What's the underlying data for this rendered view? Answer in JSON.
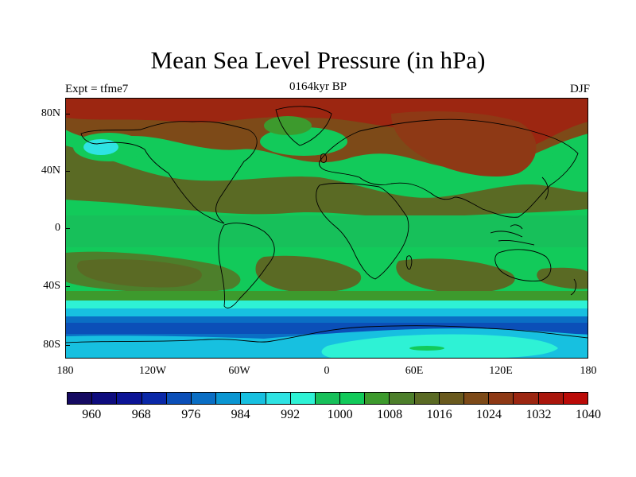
{
  "title": "Mean Sea Level Pressure (in hPa)",
  "subtitle_left": "Expt = tfme7",
  "subtitle_center": "0164kyr BP",
  "subtitle_right": "DJF",
  "y_axis": {
    "ticks": [
      "80N",
      "40N",
      "0",
      "40S",
      "80S"
    ]
  },
  "x_axis": {
    "ticks": [
      "180",
      "120W",
      "60W",
      "0",
      "60E",
      "120E",
      "180"
    ]
  },
  "colorbar": {
    "labels": [
      "960",
      "968",
      "976",
      "984",
      "992",
      "1000",
      "1008",
      "1016",
      "1024",
      "1032",
      "1040"
    ],
    "colors": [
      "#150a62",
      "#0e0c7e",
      "#0c1496",
      "#0a28a8",
      "#0b4fb8",
      "#0a6ec4",
      "#0a96d2",
      "#17c0e0",
      "#2ee3e3",
      "#2ef2d5",
      "#17c05a",
      "#12ca5a",
      "#3d9a2d",
      "#4d7f2b",
      "#5a6a24",
      "#6a5a1e",
      "#7d4a18",
      "#8e3915",
      "#9c2611",
      "#aa160c",
      "#bb0b08"
    ]
  },
  "colors": {
    "high": "#9c2c12",
    "mid_high": "#5a6a24",
    "mid": "#4d7f2b",
    "green": "#12ca5a",
    "cyan": "#17c0e0",
    "aqua": "#2ef2d5",
    "blue": "#0a6ec4",
    "dark_blue": "#0b4fb8",
    "coast": "#000000"
  }
}
